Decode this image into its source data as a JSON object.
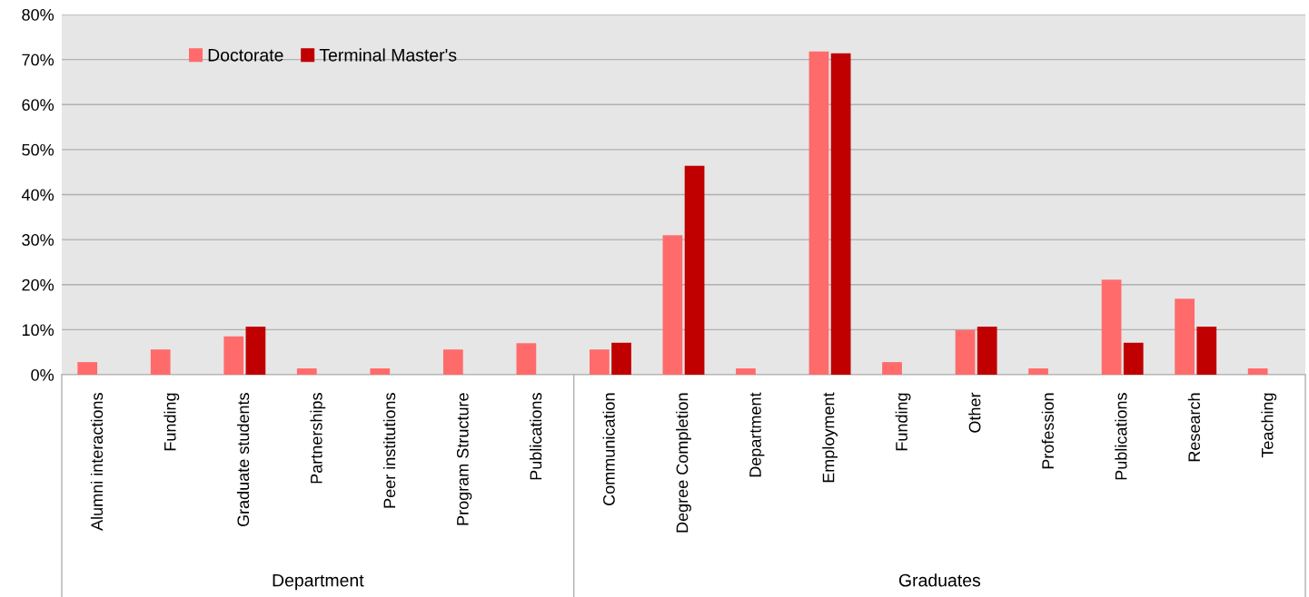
{
  "chart_data": {
    "type": "bar",
    "categories": [
      "Alumni interactions",
      "Funding",
      "Graduate students",
      "Partnerships",
      "Peer institutions",
      "Program Structure",
      "Publications",
      "Communication",
      "Degree Completion",
      "Department",
      "Employment",
      "Funding",
      "Other",
      "Profession",
      "Publications",
      "Research",
      "Teaching"
    ],
    "series": [
      {
        "name": "Doctorate",
        "color": "#ff6b6b",
        "values": [
          2.8,
          5.6,
          8.5,
          1.4,
          1.4,
          5.6,
          7.0,
          5.6,
          31.0,
          1.4,
          71.8,
          2.8,
          9.9,
          1.4,
          21.1,
          16.9,
          1.4
        ]
      },
      {
        "name": "Terminal Master's",
        "color": "#c00000",
        "values": [
          null,
          null,
          10.7,
          null,
          null,
          null,
          null,
          7.1,
          46.4,
          null,
          71.4,
          null,
          10.7,
          null,
          7.1,
          10.7,
          null
        ]
      }
    ],
    "ylim": [
      0,
      80
    ],
    "yticks": [
      {
        "value": 0,
        "label": "0%"
      },
      {
        "value": 10,
        "label": "10%"
      },
      {
        "value": 20,
        "label": "20%"
      },
      {
        "value": 30,
        "label": "30%"
      },
      {
        "value": 40,
        "label": "40%"
      },
      {
        "value": 50,
        "label": "50%"
      },
      {
        "value": 60,
        "label": "60%"
      },
      {
        "value": 70,
        "label": "70%"
      },
      {
        "value": 80,
        "label": "80%"
      }
    ],
    "grid": "y",
    "legend": "top left",
    "annotations": [
      "Department",
      "Graduates"
    ]
  }
}
